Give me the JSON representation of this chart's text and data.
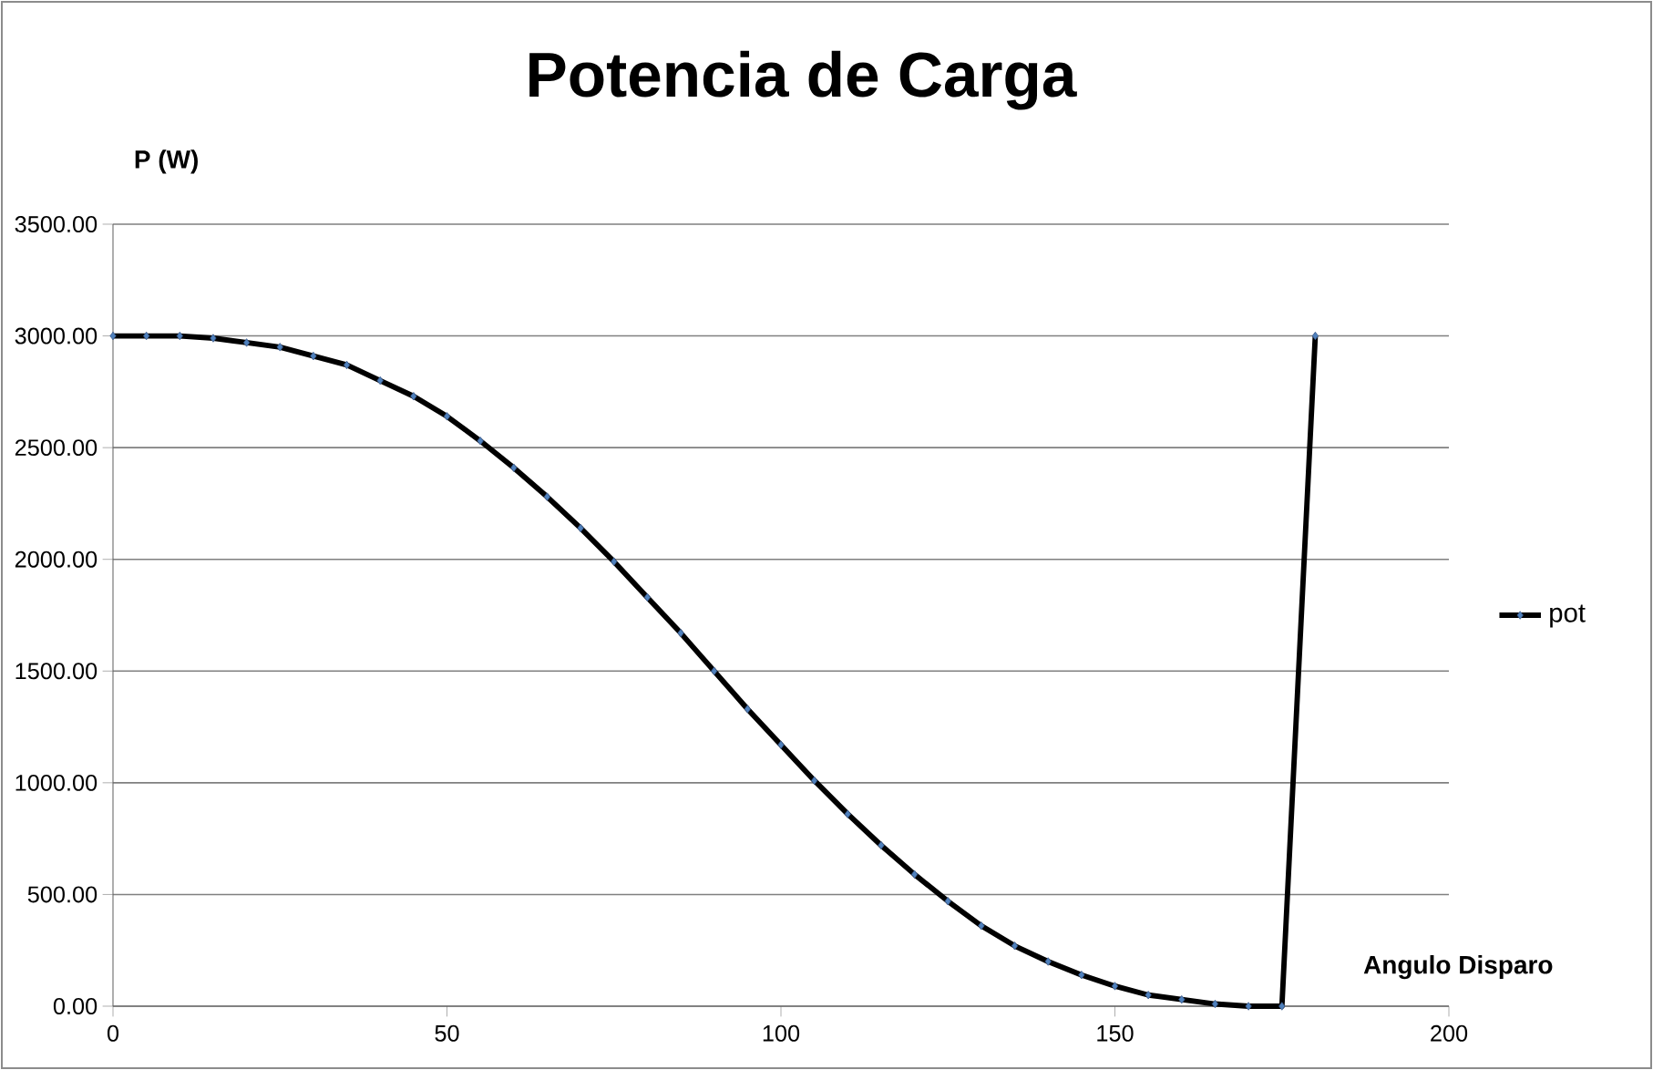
{
  "chart_data": {
    "type": "line",
    "title": "Potencia de Carga",
    "xlabel": "Angulo Disparo",
    "ylabel": "P (W)",
    "xlim": [
      0,
      200
    ],
    "xticks": [
      0,
      50,
      100,
      150,
      200
    ],
    "ylim": [
      0,
      3500
    ],
    "yticks": [
      {
        "value": 0,
        "label": "0.00"
      },
      {
        "value": 500,
        "label": "500.00"
      },
      {
        "value": 1000,
        "label": "1000.00"
      },
      {
        "value": 1500,
        "label": "1500.00"
      },
      {
        "value": 2000,
        "label": "2000.00"
      },
      {
        "value": 2500,
        "label": "2500.00"
      },
      {
        "value": 3000,
        "label": "3000.00"
      },
      {
        "value": 3500,
        "label": "3500.00"
      }
    ],
    "grid": "y",
    "legend": "right",
    "marker": "diamond",
    "line_style": "solid",
    "series": [
      {
        "name": "pot",
        "color": "#000000",
        "x": [
          0,
          5,
          10,
          15,
          20,
          25,
          30,
          35,
          40,
          45,
          50,
          55,
          60,
          65,
          70,
          75,
          80,
          85,
          90,
          95,
          100,
          105,
          110,
          115,
          120,
          125,
          130,
          135,
          140,
          145,
          150,
          155,
          160,
          165,
          170,
          175,
          180
        ],
        "values": [
          3000,
          3000,
          3000,
          2990,
          2970,
          2950,
          2910,
          2870,
          2800,
          2730,
          2640,
          2530,
          2410,
          2280,
          2140,
          1990,
          1830,
          1670,
          1500,
          1330,
          1170,
          1010,
          860,
          720,
          590,
          470,
          360,
          270,
          200,
          140,
          90,
          50,
          30,
          10,
          0,
          0,
          3000
        ]
      }
    ]
  }
}
